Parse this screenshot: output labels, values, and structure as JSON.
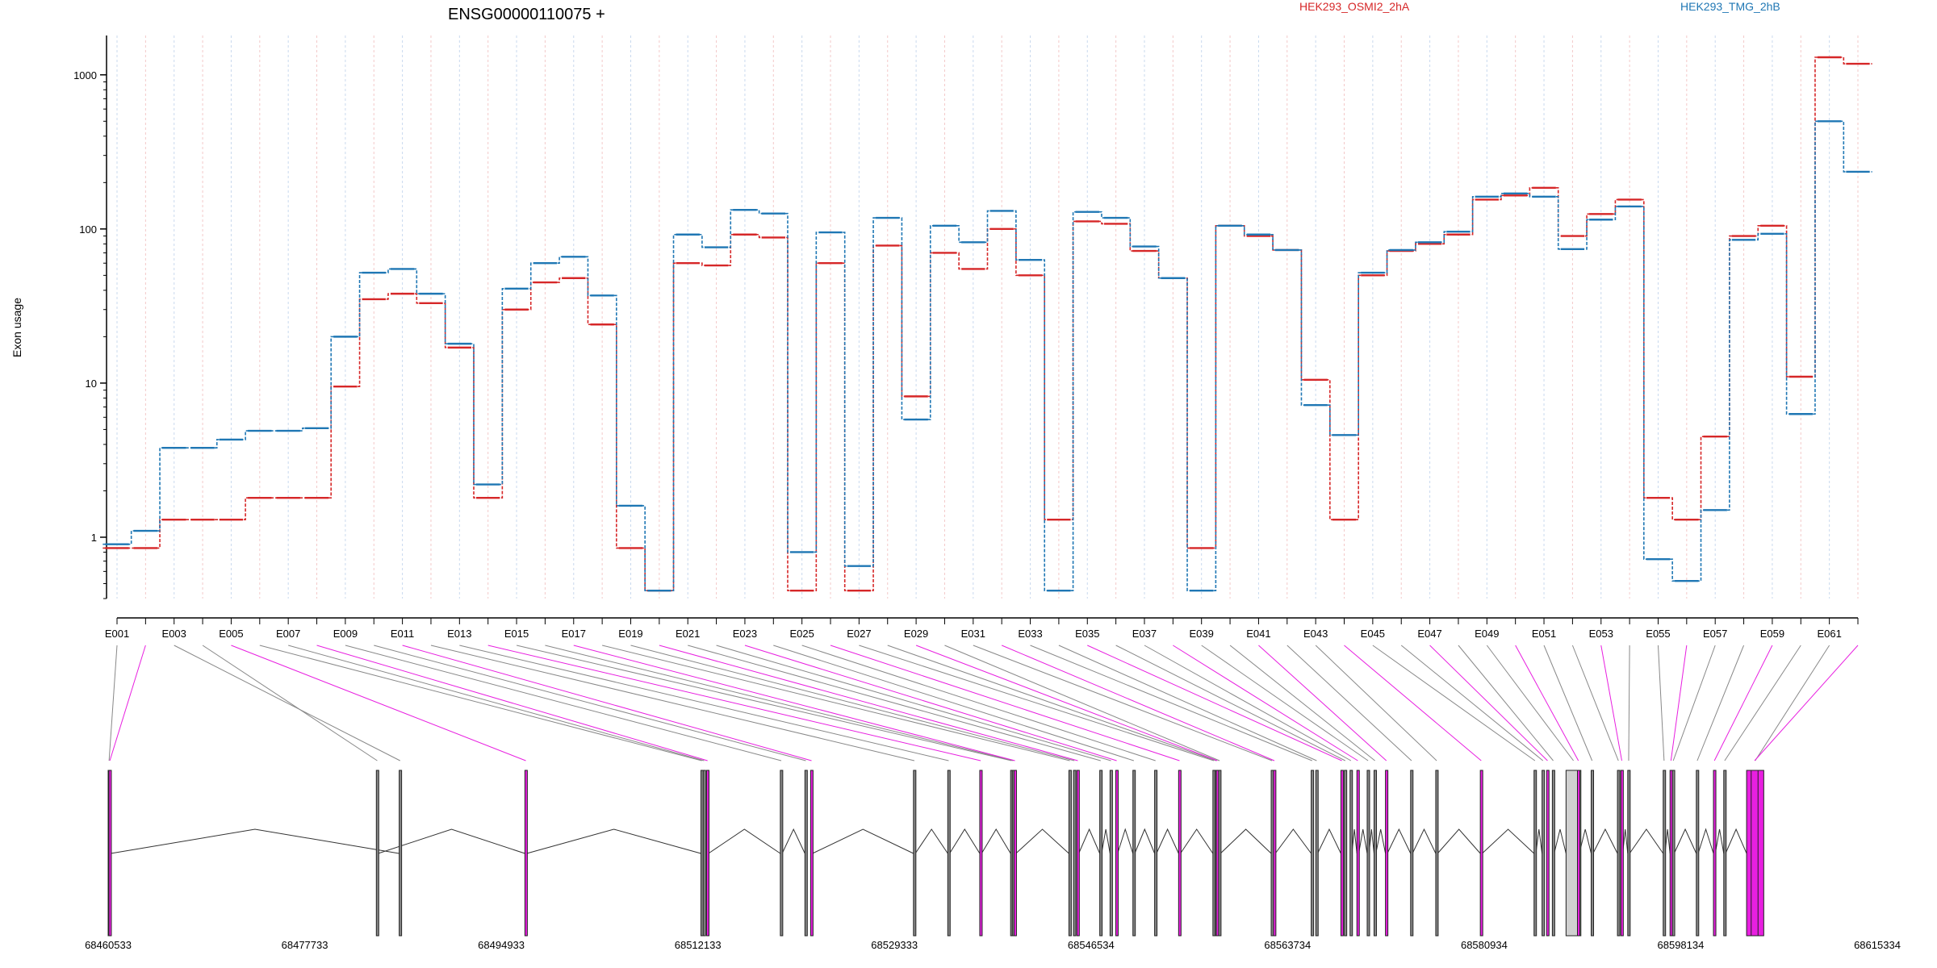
{
  "chart_data": {
    "type": "line",
    "title": "ENSG00000110075 +",
    "ylabel": "Exon usage",
    "yscale": "log",
    "ylim": [
      0.4,
      1800
    ],
    "y_ticks": [
      1,
      10,
      100,
      1000
    ],
    "x_ticks_labels": [
      "E001",
      "E003",
      "E005",
      "E007",
      "E009",
      "E011",
      "E013",
      "E015",
      "E017",
      "E019",
      "E021",
      "E023",
      "E025",
      "E027",
      "E029",
      "E031",
      "E033",
      "E035",
      "E037",
      "E039",
      "E041",
      "E043",
      "E045",
      "E047",
      "E049",
      "E051",
      "E053",
      "E055",
      "E057",
      "E059",
      "E061"
    ],
    "exons": [
      "E001",
      "E002",
      "E003",
      "E004",
      "E005",
      "E006",
      "E007",
      "E008",
      "E009",
      "E010",
      "E011",
      "E012",
      "E013",
      "E014",
      "E015",
      "E016",
      "E017",
      "E018",
      "E019",
      "E020",
      "E021",
      "E022",
      "E023",
      "E024",
      "E025",
      "E026",
      "E027",
      "E028",
      "E029",
      "E030",
      "E031",
      "E032",
      "E033",
      "E034",
      "E035",
      "E036",
      "E037",
      "E038",
      "E039",
      "E040",
      "E041",
      "E042",
      "E043",
      "E044",
      "E045",
      "E046",
      "E047",
      "E048",
      "E049",
      "E050",
      "E051",
      "E052",
      "E053",
      "E054",
      "E055",
      "E056",
      "E057",
      "E058",
      "E059",
      "E060",
      "E061",
      "E062"
    ],
    "series": [
      {
        "name": "HEK293_OSMI2_2hA",
        "color": "#d62728",
        "values": [
          0.85,
          0.85,
          1.3,
          1.3,
          1.3,
          1.8,
          1.8,
          1.8,
          9.5,
          35,
          38,
          33,
          17,
          1.8,
          30,
          45,
          48,
          24,
          0.85,
          0.45,
          60,
          58,
          92,
          88,
          0.45,
          60,
          0.45,
          78,
          8.2,
          70,
          55,
          100,
          50,
          1.3,
          112,
          108,
          72,
          48,
          0.85,
          105,
          90,
          73,
          10.5,
          1.3,
          50,
          72,
          80,
          92,
          155,
          165,
          185,
          90,
          125,
          155,
          1.8,
          1.3,
          4.5,
          90,
          105,
          11,
          1300,
          1180
        ]
      },
      {
        "name": "HEK293_TMG_2hB",
        "color": "#1f77b4",
        "values": [
          0.9,
          1.1,
          3.8,
          3.8,
          4.3,
          4.9,
          4.9,
          5.1,
          20,
          52,
          55,
          38,
          18,
          2.2,
          41,
          60,
          66,
          37,
          1.6,
          0.45,
          92,
          76,
          133,
          126,
          0.8,
          95,
          0.65,
          118,
          5.8,
          105,
          82,
          131,
          63,
          0.45,
          129,
          118,
          77,
          48,
          0.45,
          105,
          92,
          73,
          7.2,
          4.6,
          52,
          73,
          82,
          96,
          162,
          170,
          162,
          74,
          115,
          140,
          0.72,
          0.52,
          1.5,
          85,
          93,
          6.3,
          500,
          235
        ]
      }
    ],
    "genome_ticks": [
      "68460533",
      "68477733",
      "68494933",
      "68512133",
      "68529333",
      "68546534",
      "68563734",
      "68580934",
      "68598134",
      "68615334"
    ],
    "structure_color": "#e81fe0"
  }
}
